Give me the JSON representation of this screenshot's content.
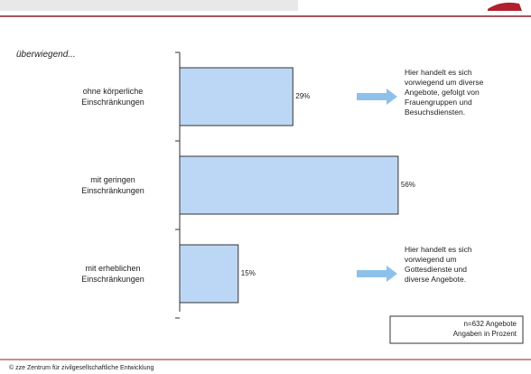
{
  "chart_data": {
    "type": "bar",
    "orientation": "horizontal",
    "subtitle": "überwiegend...",
    "categories": [
      "ohne körperliche\nEinschränkungen",
      "mit geringen\nEinschränkungen",
      "mit erheblichen\nEinschränkungen"
    ],
    "values": [
      29,
      56,
      15
    ],
    "value_labels": [
      "29%",
      "56%",
      "15%"
    ],
    "color": "#bcd7f5",
    "annotations": [
      {
        "category": 0,
        "text": "Hier handelt es sich\nvorwiegend um diverse\nAngebote, gefolgt von\nFrauengruppen und\nBesuchsdiensten."
      },
      {
        "category": 2,
        "text": "Hier handelt es sich\nvorwiegend um\nGottesdienste und\ndiverse Angebote."
      }
    ],
    "note": "n=632 Angebote\nAngaben in Prozent",
    "footer": "© zze Zentrum für zivilgesellschaftliche Entwicklung"
  }
}
